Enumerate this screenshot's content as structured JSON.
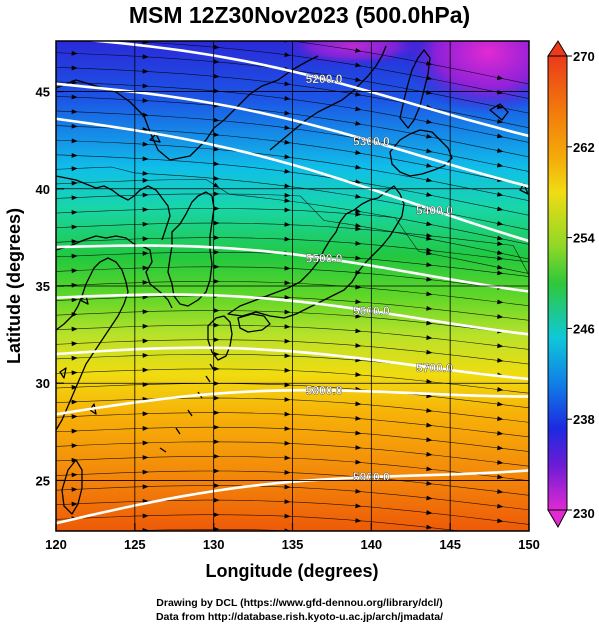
{
  "title": "MSM 12Z30Nov2023 (500.0hPa)",
  "map": {
    "xlabel": "Longitude (degrees)",
    "ylabel": "Latitude  (degrees)",
    "xlim": [
      120,
      150
    ],
    "ylim": [
      22.4,
      47.6
    ],
    "xticks": [
      "120",
      "125",
      "130",
      "135",
      "140",
      "145",
      "150"
    ],
    "xtick_values": [
      120,
      125,
      130,
      135,
      140,
      145,
      150
    ],
    "yticks": [
      "25",
      "30",
      "35",
      "40",
      "45"
    ],
    "ytick_values": [
      25,
      30,
      35,
      40,
      45
    ],
    "grid": true,
    "shading": "temperature field, blue north to orange south",
    "vectors": "wind arrows pointing eastward",
    "contours": [
      {
        "label": "5200.0",
        "lat_west": 47.8,
        "lat_east": 43.2
      },
      {
        "label": "5300.0",
        "lat_west": 45.4,
        "lat_east": 40.6
      },
      {
        "label": "5400.0",
        "lat_west": 43.6,
        "lat_east": 37.8
      },
      {
        "label": "5500.0",
        "lat_west": 37.0,
        "lat_east": 35.2
      },
      {
        "label": "5600.0",
        "lat_west": 34.4,
        "lat_east": 33.0
      },
      {
        "label": "5700.0",
        "lat_west": 31.5,
        "lat_east": 30.7
      },
      {
        "label": "5800.0",
        "lat_west": 28.4,
        "lat_east": 29.8
      },
      {
        "label": "5900.0",
        "lat_west": 22.8,
        "lat_east": 26.0
      }
    ]
  },
  "colorbar": {
    "min": 230,
    "max": 270,
    "labels": [
      "270",
      "262",
      "254",
      "246",
      "238",
      "230"
    ],
    "label_values": [
      270,
      262,
      254,
      246,
      238,
      230
    ]
  },
  "credits": {
    "line1": "Drawing by DCL (https://www.gfd-dennou.org/library/dcl/)",
    "line2": "Data from http://database.rish.kyoto-u.ac.jp/arch/jmadata/"
  }
}
